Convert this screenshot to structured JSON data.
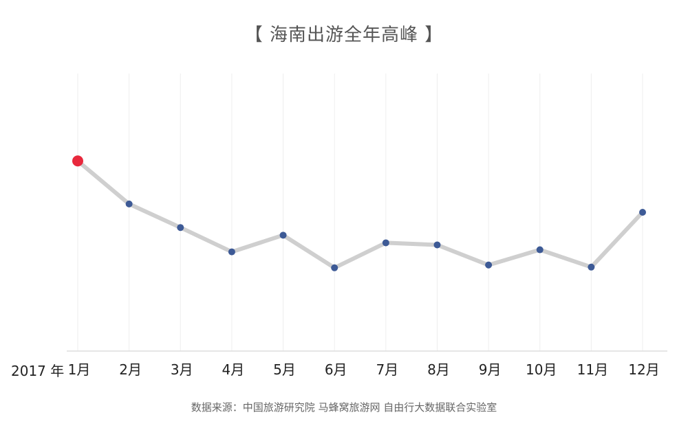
{
  "title": "【 海南出游全年高峰 】",
  "source_note": "数据来源：中国旅游研究院 马蜂窝旅游网 自由行大数据联合实验室",
  "year_label": "2017 年",
  "colors": {
    "line": "#cfcfcf",
    "point": "#3d5a96",
    "peak_point": "#e8283c",
    "grid": "#eeeeee",
    "axis": "#dddddd"
  },
  "chart_data": {
    "type": "line",
    "title": "【 海南出游全年高峰 】",
    "xlabel": "",
    "ylabel": "",
    "categories": [
      "1月",
      "2月",
      "3月",
      "4月",
      "5月",
      "6月",
      "7月",
      "8月",
      "9月",
      "10月",
      "11月",
      "12月"
    ],
    "series": [
      {
        "values": [
          27.4,
          21.2,
          17.8,
          14.3,
          16.7,
          12.0,
          15.6,
          15.3,
          12.4,
          14.6,
          12.1,
          20.0
        ]
      }
    ],
    "ylim": [
      0,
      40
    ],
    "highlight_index": 0,
    "grid": "vertical",
    "y_tick_labels": false
  }
}
